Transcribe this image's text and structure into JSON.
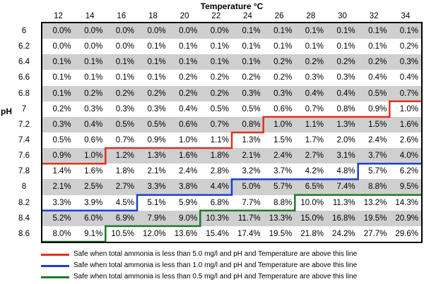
{
  "chart_data": {
    "type": "table",
    "title": "Temperature °C",
    "ylabel": "pH",
    "temperatures": [
      "12",
      "14",
      "16",
      "18",
      "20",
      "22",
      "24",
      "26",
      "28",
      "30",
      "32",
      "34"
    ],
    "ph": [
      "6",
      "6.2",
      "6.4",
      "6.6",
      "6.8",
      "7",
      "7.2",
      "7.4",
      "7.6",
      "7.8",
      "8",
      "8.2",
      "8.4",
      "8.6"
    ],
    "values": [
      [
        "0.0%",
        "0.0%",
        "0.0%",
        "0.0%",
        "0.0%",
        "0.0%",
        "0.1%",
        "0.1%",
        "0.1%",
        "0.1%",
        "0.1%",
        "0.1%"
      ],
      [
        "0.0%",
        "0.0%",
        "0.0%",
        "0.1%",
        "0.1%",
        "0.1%",
        "0.1%",
        "0.1%",
        "0.1%",
        "0.1%",
        "0.1%",
        "0.2%"
      ],
      [
        "0.1%",
        "0.1%",
        "0.1%",
        "0.1%",
        "0.1%",
        "0.1%",
        "0.1%",
        "0.2%",
        "0.2%",
        "0.2%",
        "0.2%",
        "0.3%"
      ],
      [
        "0.1%",
        "0.1%",
        "0.1%",
        "0.1%",
        "0.2%",
        "0.2%",
        "0.2%",
        "0.2%",
        "0.3%",
        "0.3%",
        "0.4%",
        "0.4%"
      ],
      [
        "0.1%",
        "0.2%",
        "0.2%",
        "0.2%",
        "0.2%",
        "0.2%",
        "0.3%",
        "0.3%",
        "0.4%",
        "0.4%",
        "0.5%",
        "0.7%"
      ],
      [
        "0.2%",
        "0.3%",
        "0.3%",
        "0.3%",
        "0.4%",
        "0.5%",
        "0.5%",
        "0.6%",
        "0.7%",
        "0.8%",
        "0.9%",
        "1.0%"
      ],
      [
        "0.3%",
        "0.4%",
        "0.5%",
        "0.5%",
        "0.6%",
        "0.7%",
        "0.8%",
        "1.0%",
        "1.1%",
        "1.3%",
        "1.5%",
        "1.6%"
      ],
      [
        "0.5%",
        "0.6%",
        "0.7%",
        "0.9%",
        "1.0%",
        "1.1%",
        "1.3%",
        "1.5%",
        "1.7%",
        "2.0%",
        "2.4%",
        "2.6%"
      ],
      [
        "0.9%",
        "1.0%",
        "1.2%",
        "1.3%",
        "1.6%",
        "1.8%",
        "2.1%",
        "2.4%",
        "2.7%",
        "3.1%",
        "3.7%",
        "4.0%"
      ],
      [
        "1.4%",
        "1.6%",
        "1.8%",
        "2.1%",
        "2.4%",
        "2.8%",
        "3.2%",
        "3.7%",
        "4.2%",
        "4.8%",
        "5.7%",
        "6.2%"
      ],
      [
        "2.1%",
        "2.5%",
        "2.7%",
        "3.3%",
        "3.8%",
        "4.4%",
        "5.0%",
        "5.7%",
        "6.5%",
        "7.4%",
        "8.8%",
        "9.5%"
      ],
      [
        "3.3%",
        "3.9%",
        "4.5%",
        "5.1%",
        "5.9%",
        "6.8%",
        "7.7%",
        "8.8%",
        "10.0%",
        "11.3%",
        "13.2%",
        "14.3%"
      ],
      [
        "5.2%",
        "6.0%",
        "6.9%",
        "7.9%",
        "9.0%",
        "10.3%",
        "11.7%",
        "13.3%",
        "15.0%",
        "16.8%",
        "19.5%",
        "20.9%"
      ],
      [
        "8.0%",
        "9.1%",
        "10.5%",
        "12.0%",
        "13.6%",
        "15.4%",
        "17.4%",
        "19.5%",
        "21.8%",
        "24.2%",
        "27.7%",
        "29.6%"
      ]
    ],
    "shaded_rows": [
      0,
      2,
      4,
      6,
      8,
      10,
      12
    ],
    "thresholds": [
      {
        "color": "#e03020",
        "boundary_row_per_column": [
          9,
          9,
          8,
          8,
          8,
          8,
          7,
          6,
          6,
          6,
          6,
          5
        ],
        "label": "Safe when total ammonia is less than 5.0 mg/l and pH and Temperature are above this line"
      },
      {
        "color": "#1a3fd0",
        "boundary_row_per_column": [
          12,
          12,
          12,
          11,
          11,
          11,
          10,
          10,
          10,
          10,
          9,
          9
        ],
        "label": "Safe when total ammonia is less than 1.0 mg/l and pH and Temperature are above this line"
      },
      {
        "color": "#1e7a2a",
        "boundary_row_per_column": [
          14,
          14,
          13,
          13,
          13,
          12,
          12,
          12,
          11,
          11,
          11,
          11
        ],
        "label": "Safe when total ammonia is less than 0.5 mg/l and pH and Temperature are above this line"
      }
    ]
  }
}
